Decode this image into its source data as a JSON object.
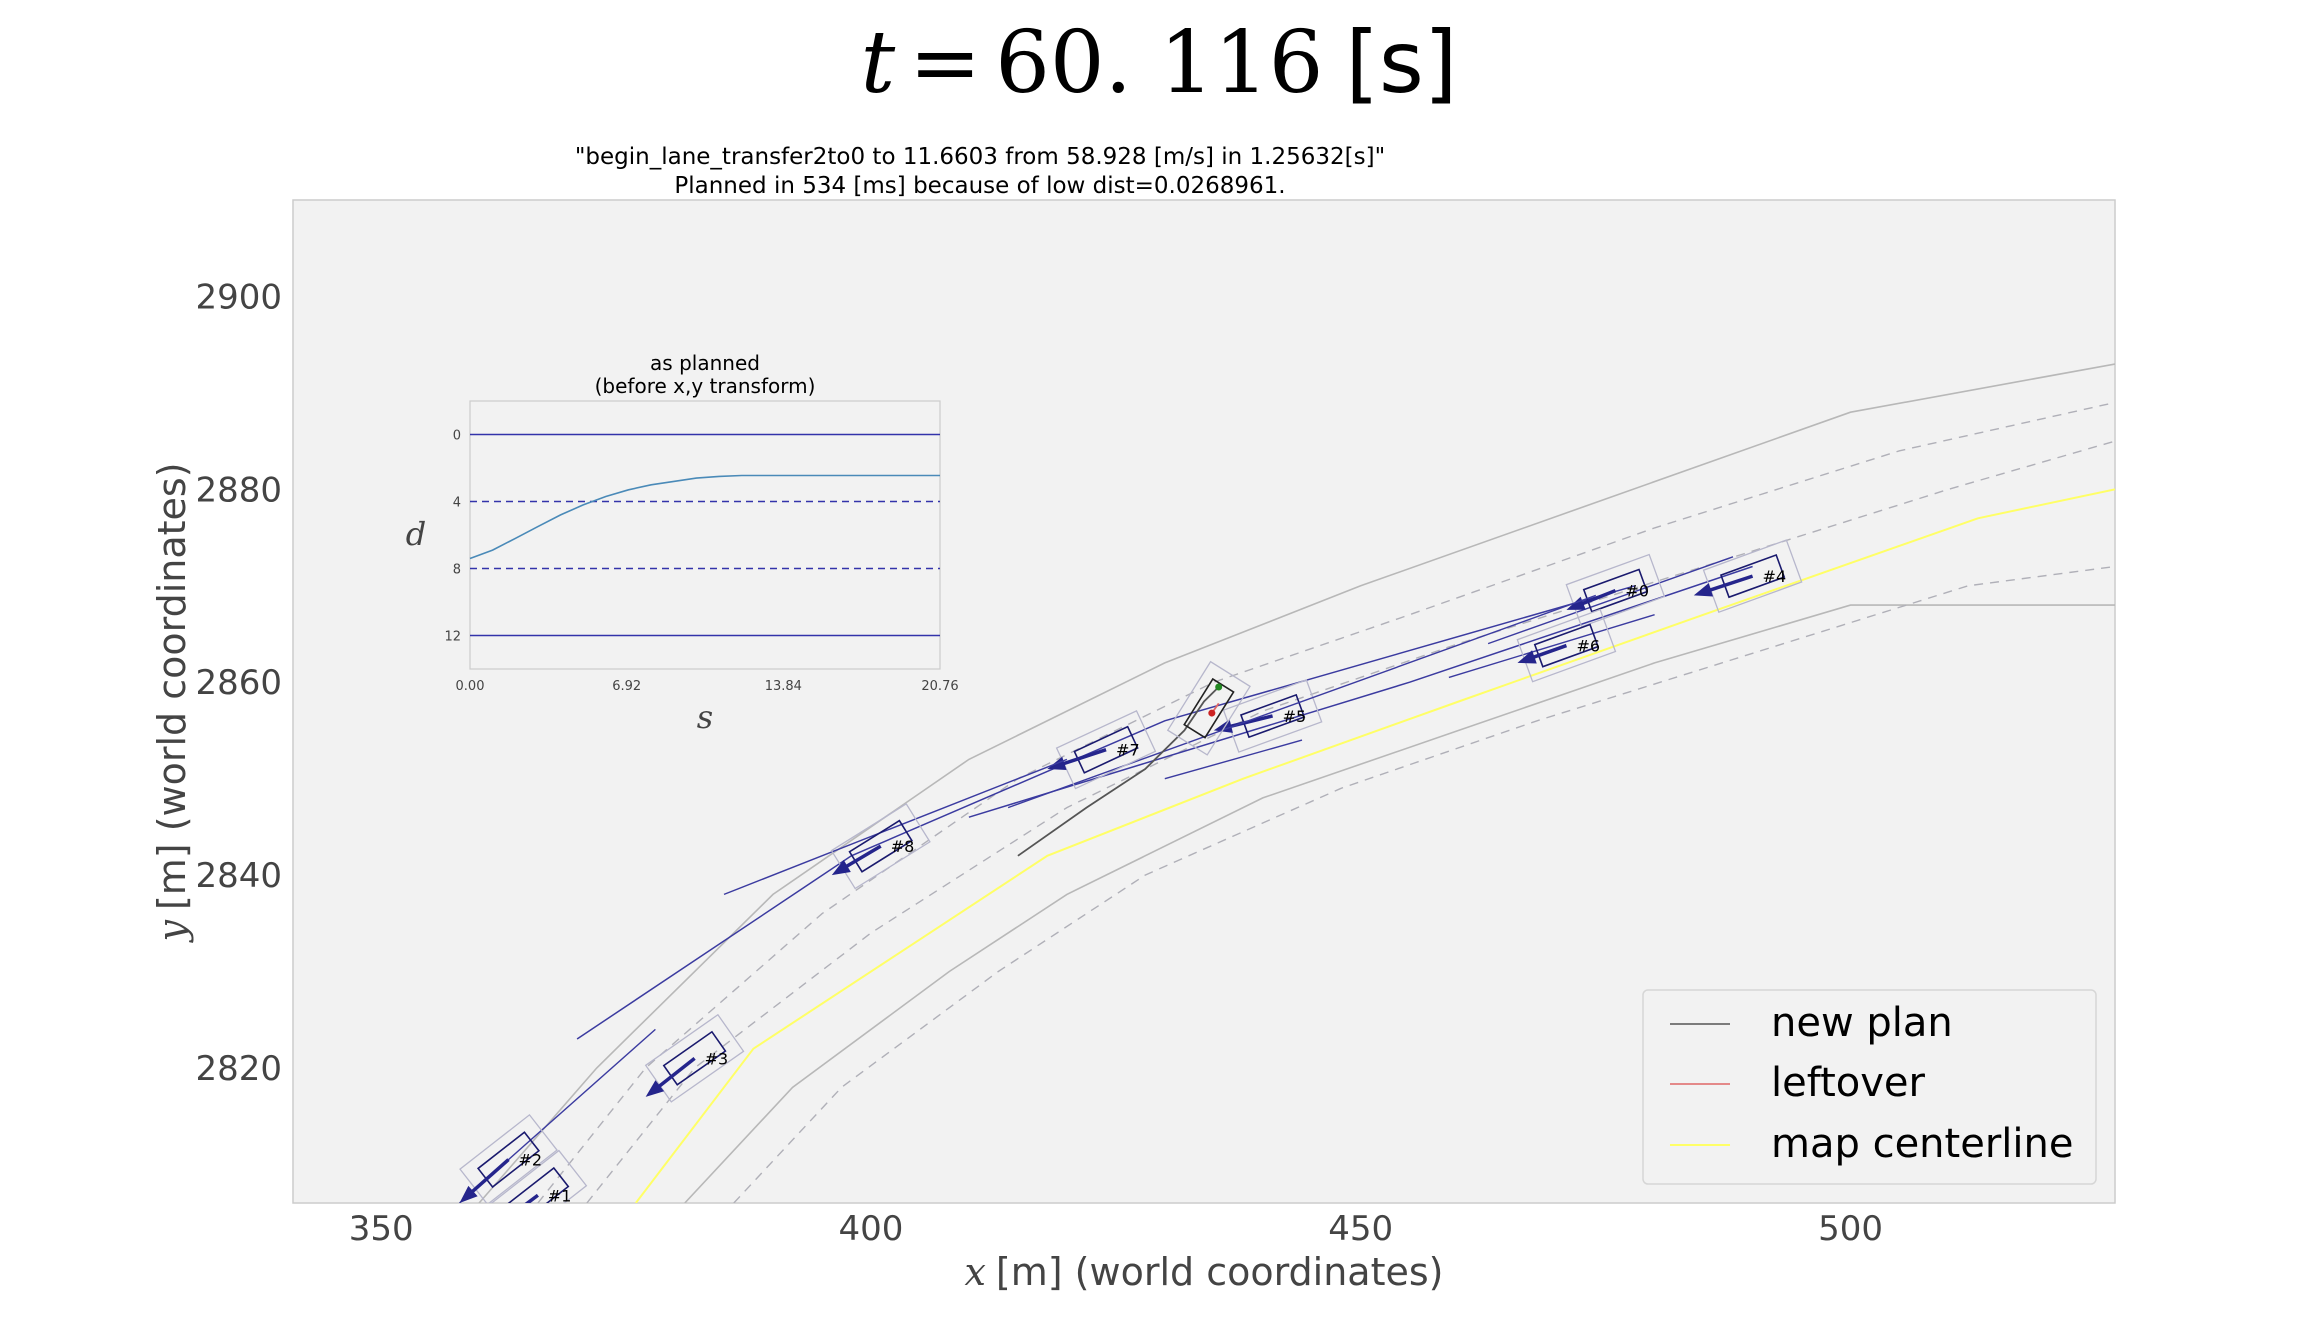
{
  "title": {
    "time_var": "t",
    "equals": "=",
    "time_value": "60. 116",
    "unit": "[s]"
  },
  "subtitle": {
    "line1": "\"begin_lane_transfer2to0 to 11.6603 from 58.928 [m/s] in 1.25632[s]\"",
    "line2": "Planned in 534 [ms] because of low dist=0.0268961."
  },
  "chart_data": [
    {
      "type": "line",
      "title": "",
      "xlabel_var": "x",
      "xlabel": "[m] (world coordinates)",
      "ylabel_var": "y",
      "ylabel": "[m] (world coordinates)",
      "xlim": [
        341,
        527
      ],
      "ylim": [
        2806,
        2910
      ],
      "x_ticks": [
        350,
        400,
        450,
        500
      ],
      "y_ticks": [
        2820,
        2840,
        2860,
        2880,
        2900
      ],
      "grid": false,
      "background": "#f2f2f2",
      "legend_position": "bottom-right",
      "legend": [
        {
          "label": "new plan",
          "color": "#555555"
        },
        {
          "label": "leftover",
          "color": "#e06666"
        },
        {
          "label": "map centerline",
          "color": "#ffff66"
        }
      ],
      "road_boundaries": [
        {
          "style": "solid",
          "color": "#b8b8b8",
          "points": [
            [
              360,
              2806
            ],
            [
              372,
              2820
            ],
            [
              390,
              2838
            ],
            [
              410,
              2852
            ],
            [
              430,
              2862
            ],
            [
              450,
              2870
            ],
            [
              475,
              2879
            ],
            [
              500,
              2888
            ],
            [
              527,
              2893
            ]
          ]
        },
        {
          "style": "solid",
          "color": "#b8b8b8",
          "points": [
            [
              381,
              2806
            ],
            [
              392,
              2818
            ],
            [
              408,
              2830
            ],
            [
              420,
              2838
            ],
            [
              440,
              2848
            ],
            [
              460,
              2855
            ],
            [
              480,
              2862
            ],
            [
              500,
              2868
            ],
            [
              527,
              2868
            ]
          ]
        }
      ],
      "lane_dashes": [
        {
          "points": [
            [
              366,
              2806
            ],
            [
              377,
              2820
            ],
            [
              395,
              2836
            ],
            [
              415,
              2850
            ],
            [
              435,
              2860
            ],
            [
              455,
              2867
            ],
            [
              480,
              2876
            ],
            [
              505,
              2884
            ],
            [
              527,
              2889
            ]
          ]
        },
        {
          "points": [
            [
              371,
              2806
            ],
            [
              382,
              2820
            ],
            [
              400,
              2834
            ],
            [
              420,
              2847
            ],
            [
              440,
              2857
            ],
            [
              460,
              2864
            ],
            [
              485,
              2872
            ],
            [
              510,
              2880
            ],
            [
              527,
              2885
            ]
          ]
        },
        {
          "points": [
            [
              386,
              2806
            ],
            [
              397,
              2818
            ],
            [
              413,
              2830
            ],
            [
              428,
              2840
            ],
            [
              448,
              2849
            ],
            [
              468,
              2856
            ],
            [
              490,
              2863
            ],
            [
              512,
              2870
            ],
            [
              527,
              2872
            ]
          ]
        }
      ],
      "centerline": {
        "color": "#ffff66",
        "points": [
          [
            376,
            2806
          ],
          [
            388,
            2822
          ],
          [
            403,
            2832
          ],
          [
            418,
            2842
          ],
          [
            438,
            2850
          ],
          [
            460,
            2858
          ],
          [
            485,
            2867
          ],
          [
            513,
            2877
          ],
          [
            527,
            2880
          ]
        ]
      },
      "new_plan": {
        "color": "#555555",
        "points": [
          [
            415,
            2842
          ],
          [
            422,
            2847
          ],
          [
            428,
            2851
          ],
          [
            432,
            2855
          ],
          [
            434,
            2858
          ],
          [
            435.5,
            2859.5
          ]
        ]
      },
      "leftover": {
        "color": "#e06666",
        "points": [
          [
            434.8,
            2856.8
          ],
          [
            435.5,
            2857.8
          ]
        ]
      },
      "ego": {
        "x": 434.5,
        "y": 2857.3,
        "heading_deg": 58,
        "length": 5.5,
        "width": 2.5,
        "label": ""
      },
      "vehicles": [
        {
          "id": "#0",
          "x": 476,
          "y": 2869.5,
          "heading_deg": 20,
          "length": 6,
          "width": 2.4,
          "arrow_to": [
            471,
            2867.5
          ],
          "track": [
            [
              463,
              2864
            ],
            [
              488,
              2873
            ]
          ]
        },
        {
          "id": "#1",
          "x": 366,
          "y": 2806.8,
          "heading_deg": 38,
          "length": 6,
          "width": 2.4,
          "arrow_to": [
            361,
            2803
          ],
          "track": []
        },
        {
          "id": "#2",
          "x": 363,
          "y": 2810.5,
          "heading_deg": 38,
          "length": 6,
          "width": 2.4,
          "arrow_to": [
            358,
            2806
          ],
          "track": [
            [
              358,
              2806
            ],
            [
              378,
              2824
            ]
          ]
        },
        {
          "id": "#3",
          "x": 382,
          "y": 2821,
          "heading_deg": 35,
          "length": 6,
          "width": 2.4,
          "arrow_to": [
            377,
            2817
          ],
          "track": []
        },
        {
          "id": "#4",
          "x": 490,
          "y": 2871,
          "heading_deg": 20,
          "length": 6,
          "width": 2.4,
          "arrow_to": [
            484,
            2869
          ],
          "track": []
        },
        {
          "id": "#5",
          "x": 441,
          "y": 2856.5,
          "heading_deg": 20,
          "length": 6,
          "width": 2.4,
          "arrow_to": [
            435,
            2855
          ],
          "track": [
            [
              444,
              2854
            ],
            [
              430,
              2850
            ]
          ]
        },
        {
          "id": "#6",
          "x": 471,
          "y": 2863.8,
          "heading_deg": 20,
          "length": 6,
          "width": 2.4,
          "arrow_to": [
            466,
            2862
          ],
          "track": [
            [
              459,
              2860.5
            ],
            [
              480,
              2867
            ]
          ]
        },
        {
          "id": "#7",
          "x": 424,
          "y": 2853,
          "heading_deg": 25,
          "length": 6,
          "width": 2.4,
          "arrow_to": [
            418,
            2851
          ],
          "track": [
            [
              414,
              2847
            ],
            [
              474,
              2869
            ]
          ]
        },
        {
          "id": "#8",
          "x": 401,
          "y": 2843,
          "heading_deg": 32,
          "length": 6,
          "width": 2.4,
          "arrow_to": [
            396,
            2840
          ],
          "track": [
            [
              385,
              2838
            ],
            [
              420,
              2852
            ]
          ]
        }
      ],
      "long_tracks": [
        [
          [
            370,
            2823
          ],
          [
            398,
            2842
          ],
          [
            430,
            2856
          ],
          [
            478,
            2870
          ]
        ],
        [
          [
            410,
            2846
          ],
          [
            455,
            2860
          ],
          [
            490,
            2872
          ]
        ]
      ]
    },
    {
      "type": "line",
      "title_line1": "as planned",
      "title_line2": "(before x,y transform)",
      "xlabel": "s",
      "ylabel": "d",
      "xlim": [
        0,
        20.76
      ],
      "ylim": [
        14,
        -2
      ],
      "x_ticks": [
        "0.00",
        "6.92",
        "13.84",
        "20.76"
      ],
      "y_ticks": [
        0,
        4,
        8,
        12
      ],
      "lane_lines": [
        {
          "d": 0,
          "style": "solid",
          "color": "#3333aa"
        },
        {
          "d": 4,
          "style": "dashed",
          "color": "#3333aa"
        },
        {
          "d": 8,
          "style": "dashed",
          "color": "#3333aa"
        },
        {
          "d": 12,
          "style": "solid",
          "color": "#3333aa"
        }
      ],
      "series": [
        {
          "color": "#4a8ab8",
          "s": [
            0,
            1,
            2,
            3,
            4,
            5,
            6,
            7,
            8,
            9,
            10,
            11,
            12,
            14,
            16,
            18,
            20.76
          ],
          "d": [
            7.4,
            6.9,
            6.2,
            5.5,
            4.8,
            4.2,
            3.7,
            3.3,
            3.0,
            2.8,
            2.6,
            2.5,
            2.45,
            2.45,
            2.45,
            2.45,
            2.45
          ]
        }
      ]
    }
  ]
}
